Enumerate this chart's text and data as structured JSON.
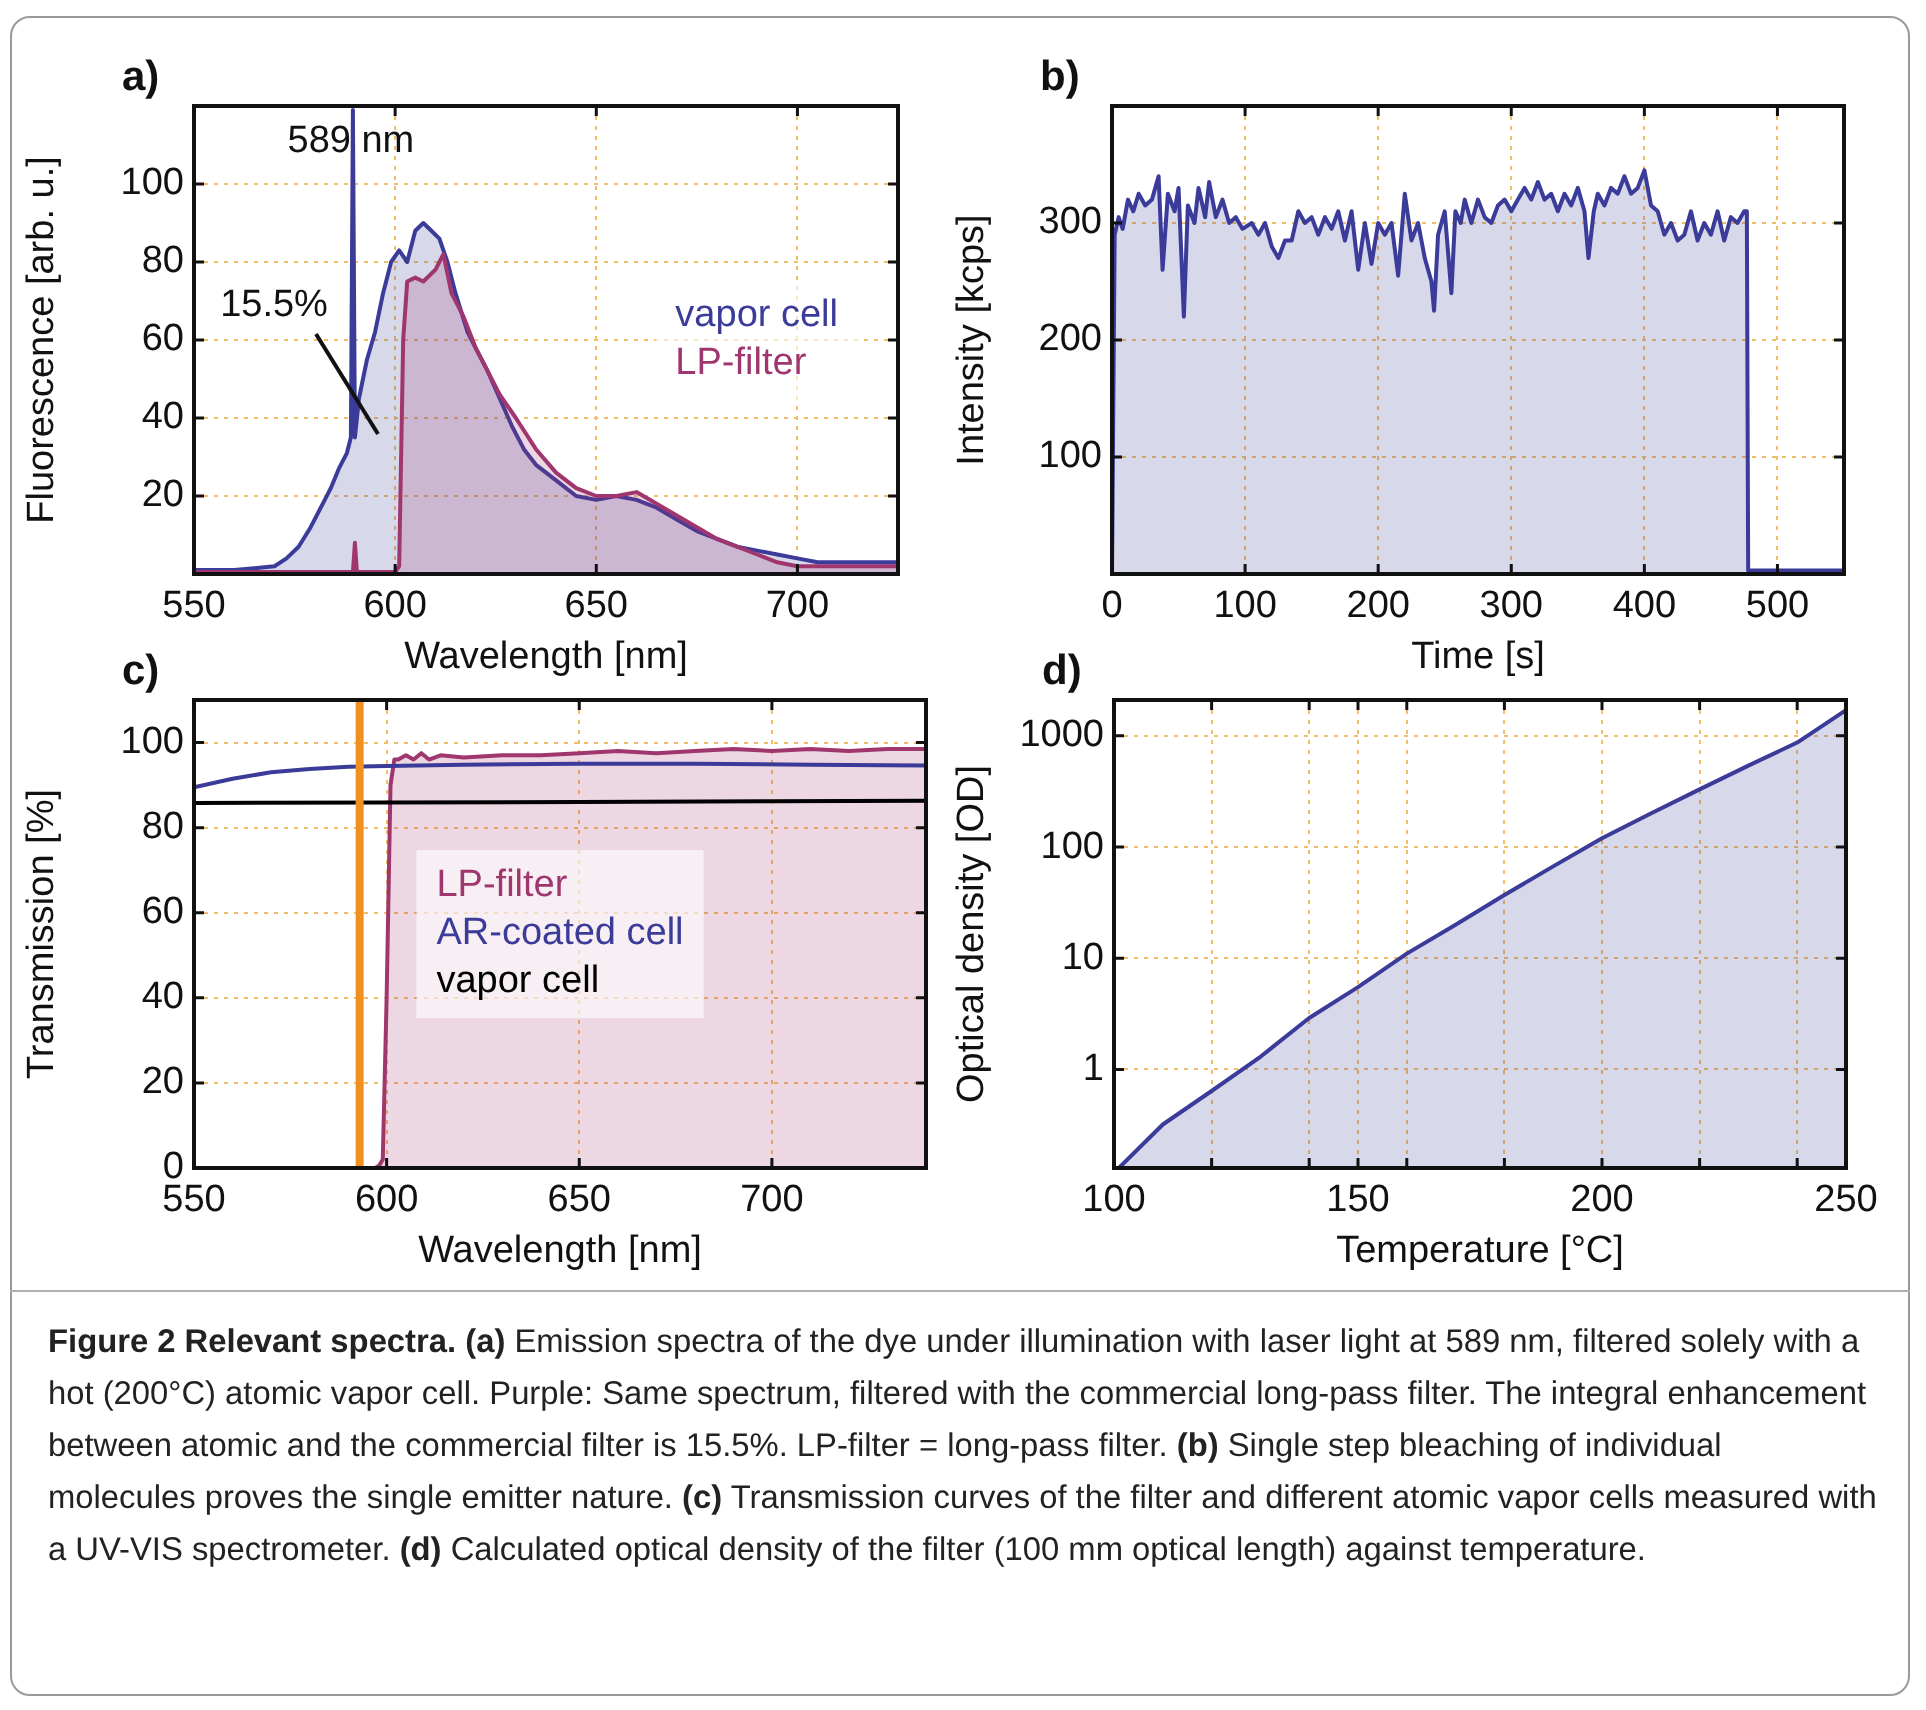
{
  "chart_data": [
    {
      "type": "area",
      "title": "a)",
      "xlabel": "Wavelength [nm]",
      "ylabel": "Fluorescence [arb. u.]",
      "xlim": [
        550,
        725
      ],
      "ylim": [
        0,
        120
      ],
      "xticks": [
        550,
        600,
        650,
        700
      ],
      "yticks": [
        20,
        40,
        60,
        80,
        100
      ],
      "grid": true,
      "legend": "right",
      "series": [
        {
          "name": "vapor cell",
          "color": "#3b3b9a",
          "type": "area",
          "x": [
            550,
            555,
            560,
            565,
            570,
            573,
            576,
            579,
            582,
            584,
            586,
            588,
            589,
            589.5,
            590,
            590.5,
            591,
            593,
            595,
            597,
            599,
            601,
            603,
            605,
            607,
            609,
            611,
            613,
            615,
            618,
            620,
            623,
            626,
            629,
            632,
            635,
            640,
            645,
            650,
            655,
            660,
            665,
            670,
            675,
            680,
            685,
            690,
            695,
            700,
            705,
            710,
            715,
            720,
            725
          ],
          "values": [
            1,
            1,
            1,
            1.5,
            2,
            4,
            7,
            12,
            18,
            22,
            27,
            31,
            35,
            119,
            35,
            40,
            45,
            55,
            62,
            72,
            80,
            83,
            80,
            88,
            90,
            88,
            86,
            80,
            72,
            62,
            58,
            52,
            45,
            38,
            32,
            28,
            24,
            20,
            19,
            20,
            19,
            17,
            14,
            11,
            9,
            7,
            6,
            5,
            4,
            3,
            3,
            3,
            3,
            3
          ]
        },
        {
          "name": "LP-filter",
          "color": "#a0366e",
          "type": "area",
          "x": [
            550,
            580,
            589.5,
            590,
            590.5,
            600,
            601,
            602,
            603,
            605,
            607,
            610,
            612,
            614,
            617,
            620,
            623,
            626,
            630,
            635,
            640,
            645,
            650,
            655,
            660,
            665,
            670,
            675,
            680,
            685,
            690,
            695,
            700,
            710,
            720,
            725
          ],
          "values": [
            0.5,
            0.5,
            0.5,
            8,
            0.5,
            0.5,
            2,
            60,
            75,
            76,
            75,
            78,
            82,
            72,
            66,
            58,
            52,
            46,
            40,
            32,
            26,
            22,
            20,
            20,
            21,
            18,
            15,
            12,
            9,
            7,
            5,
            3,
            2,
            2,
            2,
            2
          ]
        }
      ],
      "annotations": [
        {
          "text": "589 nm",
          "x": 589,
          "y": 111
        },
        "15.5%"
      ]
    },
    {
      "type": "area",
      "title": "b)",
      "xlabel": "Time [s]",
      "ylabel": "Intensity [kcps]",
      "xlim": [
        0,
        550
      ],
      "ylim": [
        0,
        400
      ],
      "xticks": [
        0,
        100,
        200,
        300,
        400,
        500
      ],
      "yticks": [
        100,
        200,
        300
      ],
      "grid": true,
      "series": [
        {
          "color": "#3b3b9a",
          "x": [
            0,
            2,
            5,
            8,
            12,
            16,
            20,
            25,
            30,
            35,
            38,
            42,
            47,
            50,
            54,
            57,
            62,
            65,
            70,
            73,
            78,
            83,
            88,
            93,
            98,
            105,
            110,
            115,
            120,
            125,
            130,
            135,
            140,
            145,
            150,
            155,
            160,
            165,
            170,
            175,
            180,
            185,
            190,
            195,
            200,
            205,
            210,
            215,
            220,
            225,
            230,
            235,
            240,
            242,
            245,
            250,
            255,
            258,
            262,
            265,
            270,
            275,
            280,
            285,
            290,
            295,
            300,
            305,
            310,
            315,
            320,
            325,
            330,
            335,
            340,
            345,
            350,
            355,
            358,
            362,
            365,
            370,
            375,
            380,
            385,
            390,
            395,
            400,
            405,
            410,
            415,
            420,
            425,
            430,
            435,
            440,
            445,
            450,
            455,
            460,
            465,
            470,
            475,
            477,
            478,
            490,
            510,
            530,
            548
          ],
          "values": [
            0,
            290,
            305,
            295,
            320,
            310,
            325,
            315,
            320,
            340,
            260,
            325,
            310,
            330,
            220,
            315,
            300,
            330,
            305,
            335,
            305,
            320,
            300,
            305,
            295,
            300,
            290,
            300,
            280,
            270,
            285,
            285,
            310,
            300,
            305,
            290,
            305,
            295,
            310,
            285,
            310,
            260,
            300,
            265,
            300,
            290,
            300,
            255,
            325,
            285,
            300,
            270,
            250,
            225,
            290,
            310,
            240,
            310,
            300,
            320,
            300,
            320,
            305,
            300,
            315,
            320,
            310,
            320,
            330,
            320,
            335,
            320,
            325,
            310,
            325,
            315,
            330,
            310,
            270,
            310,
            325,
            315,
            330,
            325,
            340,
            325,
            330,
            345,
            315,
            310,
            290,
            300,
            285,
            290,
            310,
            285,
            300,
            290,
            310,
            285,
            305,
            300,
            310,
            310,
            3,
            3,
            3,
            3,
            3
          ]
        }
      ]
    },
    {
      "type": "line",
      "title": "c)",
      "xlabel": "Wavelength [nm]",
      "ylabel": "Transmission [%]",
      "xlim": [
        550,
        740
      ],
      "ylim": [
        0,
        110
      ],
      "xticks": [
        550,
        600,
        650,
        700
      ],
      "yticks": [
        0,
        20,
        40,
        60,
        80,
        100
      ],
      "grid": true,
      "legend": "center",
      "ref_lines": [
        {
          "axis": "x",
          "value": 593,
          "color": "#f0901e"
        }
      ],
      "series": [
        {
          "name": "LP-filter",
          "color": "#a0366e",
          "type": "area",
          "x": [
            550,
            590,
            597,
            598,
            599,
            600,
            601,
            602,
            603,
            605,
            607,
            609,
            611,
            614,
            620,
            630,
            640,
            650,
            660,
            670,
            680,
            690,
            700,
            710,
            720,
            730,
            740
          ],
          "values": [
            0,
            0,
            0,
            0.5,
            2,
            40,
            90,
            96,
            96,
            97,
            96,
            97.5,
            96,
            97,
            96.5,
            97,
            97,
            97.5,
            98,
            97.5,
            98,
            98.5,
            98,
            98.5,
            98,
            98.5,
            98.5
          ]
        },
        {
          "name": "AR-coated cell",
          "color": "#3b3b9a",
          "type": "line",
          "x": [
            550,
            560,
            570,
            580,
            590,
            600,
            620,
            650,
            680,
            710,
            740
          ],
          "values": [
            89.5,
            91.5,
            93,
            93.8,
            94.3,
            94.5,
            94.8,
            95,
            95,
            94.8,
            94.6
          ]
        },
        {
          "name": "vapor cell",
          "color": "#000000",
          "type": "line",
          "x": [
            550,
            600,
            650,
            700,
            740
          ],
          "values": [
            85.8,
            85.9,
            86,
            86.2,
            86.3
          ]
        }
      ]
    },
    {
      "type": "area",
      "title": "d)",
      "xlabel": "Temperature [°C]",
      "ylabel": "Optical density [OD]",
      "log": "y",
      "xlim": [
        100,
        250
      ],
      "ylim": [
        0.13,
        2100
      ],
      "xticks": [
        100,
        {
          "value": 120,
          "label": null
        },
        {
          "value": 140,
          "label": null
        },
        150,
        {
          "value": 160,
          "label": null
        },
        {
          "value": 180,
          "label": null
        },
        200,
        {
          "value": 220,
          "label": null
        },
        {
          "value": 240,
          "label": null
        },
        250
      ],
      "yticks": [
        1,
        10,
        100,
        1000
      ],
      "grid": true,
      "series": [
        {
          "color": "#3b3b9a",
          "x": [
            101,
            110,
            120,
            130,
            140,
            150,
            160,
            170,
            180,
            190,
            200,
            210,
            220,
            230,
            240,
            250
          ],
          "values": [
            0.13,
            0.32,
            0.64,
            1.3,
            2.9,
            5.5,
            11,
            20,
            37,
            67,
            120,
            200,
            330,
            540,
            870,
            1700
          ]
        }
      ],
      "annotations": [
        "Figure 2 Relevant spectra.",
        "(a) Emission spectra of the dye under illumination with laser light at 589 nm, filtered solely with a hot (200°C) atomic vapor cell. Purple: Same spectrum, filtered with the commercial long-pass filter. The integral enhancement between atomic and the commercial filter is 15.5%. LP-filter = long-pass filter.",
        "(b) Single step bleaching of individual molecules proves the single emitter nature.",
        "(c) Transmission curves of the filter and different atomic vapor cells measured with a UV-VIS spectrometer.",
        "(d) Calculated optical density of the filter (100 mm optical length) against temperature."
      ]
    }
  ]
}
